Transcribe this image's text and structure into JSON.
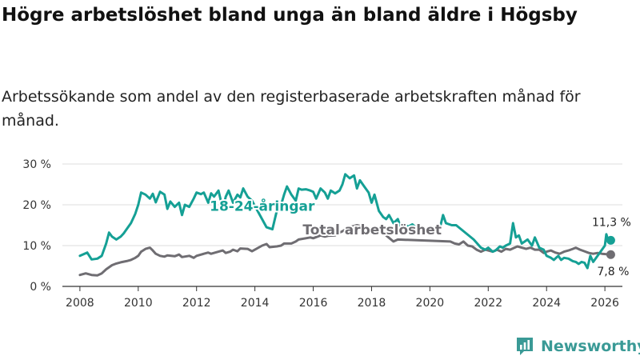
{
  "title": "Högre arbetslöshet bland unga än bland äldre i Högsby",
  "subtitle": "Arbetssökande som andel av den registerbaserade arbetskraften månad för månad.",
  "brand": {
    "name": "Newsworthy",
    "icon": "newsworthy-logo-icon",
    "color": "#3a9a96"
  },
  "chart_data": {
    "type": "line",
    "xlim": [
      2007.4,
      2026.6
    ],
    "ylim": [
      0,
      30
    ],
    "grid": "horizontal",
    "yticks": [
      {
        "value": 0,
        "label": "0 %"
      },
      {
        "value": 10,
        "label": "10 %"
      },
      {
        "value": 20,
        "label": "20 %"
      },
      {
        "value": 30,
        "label": "30 %"
      }
    ],
    "xticks": [
      {
        "value": 2008,
        "label": "2008"
      },
      {
        "value": 2010,
        "label": "2010"
      },
      {
        "value": 2012,
        "label": "2012"
      },
      {
        "value": 2014,
        "label": "2014"
      },
      {
        "value": 2016,
        "label": "2016"
      },
      {
        "value": 2018,
        "label": "2018"
      },
      {
        "value": 2020,
        "label": "2020"
      },
      {
        "value": 2022,
        "label": "2022"
      },
      {
        "value": 2024,
        "label": "2024"
      },
      {
        "value": 2026,
        "label": "2026"
      }
    ],
    "series": [
      {
        "name": "18-24-åringar",
        "color": "#15a095",
        "end_label": "11,3 %",
        "points": [
          [
            2008.0,
            7.5
          ],
          [
            2008.25,
            8.3
          ],
          [
            2008.4,
            6.6
          ],
          [
            2008.6,
            6.8
          ],
          [
            2008.75,
            7.5
          ],
          [
            2008.9,
            10.5
          ],
          [
            2009.0,
            13.2
          ],
          [
            2009.1,
            12.2
          ],
          [
            2009.25,
            11.5
          ],
          [
            2009.4,
            12.2
          ],
          [
            2009.5,
            13.0
          ],
          [
            2009.6,
            14.0
          ],
          [
            2009.75,
            15.5
          ],
          [
            2009.9,
            17.8
          ],
          [
            2010.0,
            20.0
          ],
          [
            2010.1,
            23.0
          ],
          [
            2010.25,
            22.5
          ],
          [
            2010.4,
            21.5
          ],
          [
            2010.5,
            22.7
          ],
          [
            2010.6,
            20.6
          ],
          [
            2010.75,
            23.2
          ],
          [
            2010.9,
            22.5
          ],
          [
            2011.0,
            19.0
          ],
          [
            2011.1,
            20.8
          ],
          [
            2011.25,
            19.5
          ],
          [
            2011.4,
            20.5
          ],
          [
            2011.5,
            17.5
          ],
          [
            2011.6,
            20.0
          ],
          [
            2011.75,
            19.5
          ],
          [
            2011.9,
            21.5
          ],
          [
            2012.0,
            23.0
          ],
          [
            2012.15,
            22.6
          ],
          [
            2012.25,
            23.0
          ],
          [
            2012.4,
            20.5
          ],
          [
            2012.5,
            22.8
          ],
          [
            2012.6,
            22.0
          ],
          [
            2012.75,
            23.5
          ],
          [
            2012.9,
            19.0
          ],
          [
            2013.0,
            22.0
          ],
          [
            2013.1,
            23.5
          ],
          [
            2013.25,
            20.5
          ],
          [
            2013.4,
            22.5
          ],
          [
            2013.5,
            21.8
          ],
          [
            2013.6,
            24.0
          ],
          [
            2013.75,
            22.0
          ],
          [
            2013.9,
            21.0
          ],
          [
            2014.4,
            14.5
          ],
          [
            2014.6,
            14.0
          ],
          [
            2014.75,
            18.5
          ],
          [
            2014.9,
            20.0
          ],
          [
            2015.0,
            22.5
          ],
          [
            2015.1,
            24.5
          ],
          [
            2015.25,
            22.5
          ],
          [
            2015.4,
            21.0
          ],
          [
            2015.5,
            24.0
          ],
          [
            2015.6,
            23.7
          ],
          [
            2015.75,
            23.8
          ],
          [
            2015.9,
            23.5
          ],
          [
            2016.0,
            23.2
          ],
          [
            2016.1,
            21.5
          ],
          [
            2016.25,
            24.0
          ],
          [
            2016.4,
            23.0
          ],
          [
            2016.5,
            21.5
          ],
          [
            2016.6,
            23.5
          ],
          [
            2016.75,
            22.8
          ],
          [
            2016.9,
            23.5
          ],
          [
            2017.0,
            25.0
          ],
          [
            2017.1,
            27.5
          ],
          [
            2017.25,
            26.5
          ],
          [
            2017.4,
            27.2
          ],
          [
            2017.5,
            24.0
          ],
          [
            2017.6,
            26.0
          ],
          [
            2017.75,
            24.5
          ],
          [
            2017.9,
            23.0
          ],
          [
            2018.0,
            20.5
          ],
          [
            2018.1,
            22.5
          ],
          [
            2018.25,
            18.5
          ],
          [
            2018.4,
            17.0
          ],
          [
            2018.5,
            16.5
          ],
          [
            2018.6,
            17.5
          ],
          [
            2018.75,
            15.5
          ],
          [
            2018.9,
            16.5
          ],
          [
            2019.0,
            14.5
          ],
          [
            2019.15,
            15.2
          ],
          [
            2019.25,
            14.6
          ],
          [
            2019.4,
            15.2
          ],
          [
            2019.5,
            14.6
          ],
          [
            2020.2,
            13.5
          ],
          [
            2020.35,
            14.5
          ],
          [
            2020.45,
            17.5
          ],
          [
            2020.55,
            15.5
          ],
          [
            2020.75,
            15.0
          ],
          [
            2020.9,
            15.0
          ],
          [
            2021.5,
            11.5
          ],
          [
            2021.75,
            9.5
          ],
          [
            2021.9,
            9.0
          ],
          [
            2022.0,
            9.5
          ],
          [
            2022.15,
            8.5
          ],
          [
            2022.25,
            8.8
          ],
          [
            2022.4,
            9.8
          ],
          [
            2022.5,
            9.5
          ],
          [
            2022.6,
            10.0
          ],
          [
            2022.75,
            10.5
          ],
          [
            2022.85,
            15.5
          ],
          [
            2022.95,
            12.0
          ],
          [
            2023.05,
            12.5
          ],
          [
            2023.15,
            10.5
          ],
          [
            2023.25,
            11.0
          ],
          [
            2023.35,
            11.5
          ],
          [
            2023.5,
            10.0
          ],
          [
            2023.6,
            12.0
          ],
          [
            2023.75,
            9.5
          ],
          [
            2023.9,
            9.0
          ],
          [
            2024.0,
            7.5
          ],
          [
            2024.15,
            7.0
          ],
          [
            2024.25,
            6.5
          ],
          [
            2024.4,
            7.5
          ],
          [
            2024.5,
            6.5
          ],
          [
            2024.6,
            7.0
          ],
          [
            2024.75,
            6.8
          ],
          [
            2024.9,
            6.2
          ],
          [
            2025.0,
            6.0
          ],
          [
            2025.1,
            5.5
          ],
          [
            2025.2,
            6.0
          ],
          [
            2025.3,
            5.8
          ],
          [
            2025.4,
            4.5
          ],
          [
            2025.5,
            7.5
          ],
          [
            2025.6,
            6.0
          ],
          [
            2026.0,
            10.0
          ],
          [
            2026.05,
            12.8
          ],
          [
            2026.12,
            11.0
          ],
          [
            2026.2,
            11.3
          ]
        ]
      },
      {
        "name": "Total arbetslöshet",
        "color": "#6f6d72",
        "end_label": "7,8 %",
        "points": [
          [
            2008.0,
            2.8
          ],
          [
            2008.2,
            3.2
          ],
          [
            2008.4,
            2.8
          ],
          [
            2008.6,
            2.7
          ],
          [
            2008.75,
            3.2
          ],
          [
            2008.9,
            4.2
          ],
          [
            2009.1,
            5.2
          ],
          [
            2009.25,
            5.6
          ],
          [
            2009.4,
            5.9
          ],
          [
            2009.6,
            6.2
          ],
          [
            2009.75,
            6.5
          ],
          [
            2009.9,
            7.0
          ],
          [
            2010.0,
            7.5
          ],
          [
            2010.1,
            8.5
          ],
          [
            2010.25,
            9.2
          ],
          [
            2010.4,
            9.5
          ],
          [
            2010.5,
            8.8
          ],
          [
            2010.6,
            8.0
          ],
          [
            2010.75,
            7.5
          ],
          [
            2010.9,
            7.3
          ],
          [
            2011.0,
            7.6
          ],
          [
            2011.25,
            7.4
          ],
          [
            2011.4,
            7.8
          ],
          [
            2011.5,
            7.2
          ],
          [
            2011.75,
            7.5
          ],
          [
            2011.9,
            7.0
          ],
          [
            2012.0,
            7.5
          ],
          [
            2012.25,
            8.0
          ],
          [
            2012.4,
            8.3
          ],
          [
            2012.5,
            8.0
          ],
          [
            2012.75,
            8.5
          ],
          [
            2012.9,
            8.8
          ],
          [
            2013.0,
            8.2
          ],
          [
            2013.15,
            8.5
          ],
          [
            2013.25,
            9.0
          ],
          [
            2013.4,
            8.6
          ],
          [
            2013.5,
            9.3
          ],
          [
            2013.75,
            9.2
          ],
          [
            2013.9,
            8.6
          ],
          [
            2014.0,
            9.0
          ],
          [
            2014.25,
            10.0
          ],
          [
            2014.4,
            10.4
          ],
          [
            2014.5,
            9.6
          ],
          [
            2014.75,
            9.8
          ],
          [
            2014.9,
            10.0
          ],
          [
            2015.0,
            10.5
          ],
          [
            2015.25,
            10.5
          ],
          [
            2015.4,
            11.0
          ],
          [
            2015.5,
            11.5
          ],
          [
            2015.75,
            11.8
          ],
          [
            2015.9,
            12.0
          ],
          [
            2016.0,
            11.8
          ],
          [
            2016.25,
            12.5
          ],
          [
            2016.4,
            12.2
          ],
          [
            2016.5,
            12.4
          ],
          [
            2016.75,
            12.5
          ],
          [
            2016.9,
            13.2
          ],
          [
            2017.0,
            13.5
          ],
          [
            2017.25,
            14.5
          ],
          [
            2017.4,
            14.8
          ],
          [
            2017.5,
            15.0
          ],
          [
            2017.6,
            14.8
          ],
          [
            2017.75,
            14.5
          ],
          [
            2017.9,
            14.0
          ],
          [
            2018.0,
            14.2
          ],
          [
            2018.25,
            13.0
          ],
          [
            2018.4,
            13.5
          ],
          [
            2018.5,
            12.5
          ],
          [
            2018.75,
            11.0
          ],
          [
            2018.9,
            11.5
          ],
          [
            2020.7,
            11.0
          ],
          [
            2020.85,
            10.5
          ],
          [
            2021.0,
            10.3
          ],
          [
            2021.15,
            11.0
          ],
          [
            2021.3,
            10.0
          ],
          [
            2021.45,
            9.8
          ],
          [
            2021.6,
            9.0
          ],
          [
            2021.75,
            8.5
          ],
          [
            2021.9,
            9.0
          ],
          [
            2022.0,
            8.8
          ],
          [
            2022.15,
            8.5
          ],
          [
            2022.3,
            9.0
          ],
          [
            2022.45,
            8.5
          ],
          [
            2022.6,
            9.2
          ],
          [
            2022.75,
            9.0
          ],
          [
            2022.9,
            9.5
          ],
          [
            2023.0,
            9.8
          ],
          [
            2023.15,
            9.5
          ],
          [
            2023.3,
            9.2
          ],
          [
            2023.45,
            9.5
          ],
          [
            2023.6,
            9.0
          ],
          [
            2023.75,
            9.0
          ],
          [
            2023.9,
            8.2
          ],
          [
            2024.0,
            8.5
          ],
          [
            2024.15,
            8.8
          ],
          [
            2024.3,
            8.3
          ],
          [
            2024.45,
            8.0
          ],
          [
            2024.6,
            8.5
          ],
          [
            2024.75,
            8.8
          ],
          [
            2024.9,
            9.2
          ],
          [
            2025.0,
            9.5
          ],
          [
            2025.15,
            9.0
          ],
          [
            2025.3,
            8.6
          ],
          [
            2025.45,
            8.2
          ],
          [
            2025.6,
            8.0
          ],
          [
            2025.75,
            8.2
          ],
          [
            2025.9,
            8.0
          ],
          [
            2026.05,
            7.9
          ],
          [
            2026.2,
            7.8
          ]
        ]
      }
    ],
    "annotations": [
      {
        "text": "18-24-åringar",
        "series": 0,
        "x": 2014.25,
        "y": 18.5,
        "anchor": "middle"
      },
      {
        "text": "Total arbetslöshet",
        "series": 1,
        "x": 2020.4,
        "y": 12.7,
        "anchor": "end"
      }
    ]
  }
}
